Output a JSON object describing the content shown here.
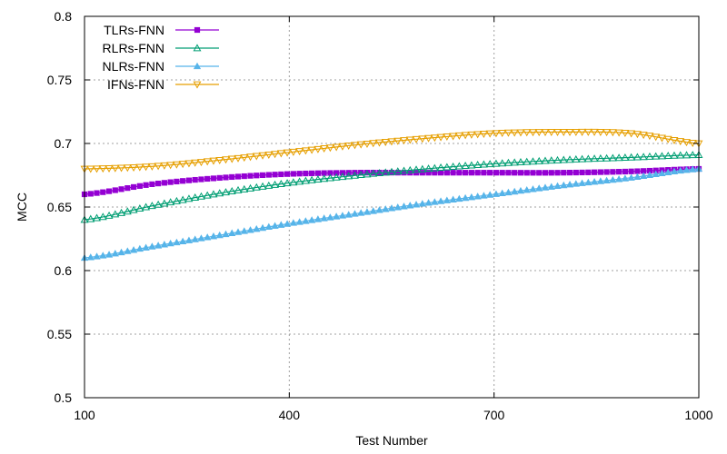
{
  "chart_data": {
    "type": "line",
    "title": "",
    "xlabel": "Test Number",
    "ylabel": "MCC",
    "xlim": [
      100,
      1000
    ],
    "ylim": [
      0.5,
      0.8
    ],
    "xticks": [
      100,
      400,
      700,
      1000
    ],
    "yticks": [
      0.5,
      0.55,
      0.6,
      0.65,
      0.7,
      0.75,
      0.8
    ],
    "grid": true,
    "legend_position": "top-left",
    "series": [
      {
        "name": "TLRs-FNN",
        "color": "#9400d3",
        "marker": "filled-square",
        "x": [
          100,
          200,
          300,
          400,
          500,
          600,
          700,
          800,
          900,
          1000
        ],
        "y": [
          0.66,
          0.668,
          0.673,
          0.676,
          0.677,
          0.677,
          0.677,
          0.677,
          0.678,
          0.68
        ]
      },
      {
        "name": "RLRs-FNN",
        "color": "#009e73",
        "marker": "open-triangle-up",
        "x": [
          100,
          200,
          300,
          400,
          500,
          600,
          700,
          800,
          900,
          1000
        ],
        "y": [
          0.64,
          0.651,
          0.661,
          0.669,
          0.675,
          0.68,
          0.684,
          0.687,
          0.689,
          0.691
        ]
      },
      {
        "name": "NLRs-FNN",
        "color": "#56b4e9",
        "marker": "filled-triangle-up",
        "x": [
          100,
          200,
          300,
          400,
          500,
          600,
          700,
          800,
          900,
          1000
        ],
        "y": [
          0.61,
          0.619,
          0.628,
          0.637,
          0.645,
          0.653,
          0.66,
          0.667,
          0.673,
          0.68
        ]
      },
      {
        "name": "IFNs-FNN",
        "color": "#e69f00",
        "marker": "open-triangle-down",
        "x": [
          100,
          200,
          300,
          400,
          500,
          600,
          700,
          800,
          900,
          1000
        ],
        "y": [
          0.68,
          0.682,
          0.687,
          0.693,
          0.699,
          0.704,
          0.708,
          0.709,
          0.708,
          0.7
        ]
      }
    ]
  }
}
